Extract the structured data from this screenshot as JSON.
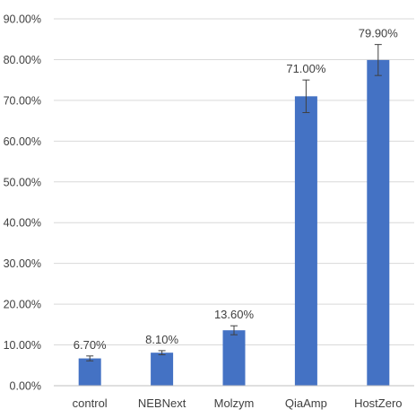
{
  "chart_data": {
    "type": "bar",
    "title": "",
    "xlabel": "",
    "ylabel": "",
    "categories": [
      "control",
      "NEBNext",
      "Molzym",
      "QiaAmp",
      "HostZero"
    ],
    "values": [
      6.7,
      8.1,
      13.6,
      71.0,
      79.9
    ],
    "value_labels": [
      "6.70%",
      "8.10%",
      "13.60%",
      "71.00%",
      "79.90%"
    ],
    "error": [
      0.6,
      0.5,
      1.1,
      4.0,
      3.8
    ],
    "ylim": [
      0,
      90
    ],
    "y_ticks": [
      0,
      10,
      20,
      30,
      40,
      50,
      60,
      70,
      80,
      90
    ],
    "y_tick_labels": [
      "0.00%",
      "10.00%",
      "20.00%",
      "30.00%",
      "40.00%",
      "50.00%",
      "60.00%",
      "70.00%",
      "80.00%",
      "90.00%"
    ],
    "grid": true,
    "legend": "none",
    "bar_color": "#4472c4"
  }
}
